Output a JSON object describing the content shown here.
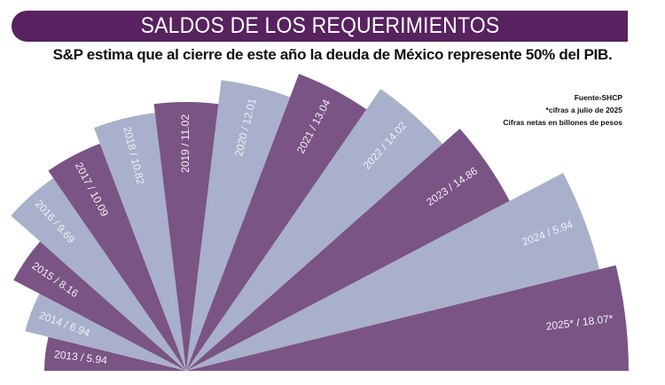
{
  "header": {
    "title": "SALDOS DE LOS REQUERIMIENTOS",
    "subtitle": "S&P estima que al cierre de este año la deuda de México represente 50% del PIB."
  },
  "notes": {
    "source": "Fuente›SHCP",
    "footnote": "*cifras a julio de 2025",
    "units": "Cifras netas en billones de pesos"
  },
  "colors": {
    "title_bg": "#58215f",
    "dark_wedge": "#7a5484",
    "light_wedge": "#a9b0cb",
    "label_text": "#f2f0f6"
  },
  "chart_data": {
    "type": "radial-bar",
    "title": "SALDOS DE LOS REQUERIMIENTOS",
    "subtitle": "S&P estima que al cierre de este año la deuda de México represente 50% del PIB.",
    "xlabel": "",
    "ylabel": "Cifras netas en billones de pesos",
    "categories": [
      "2013",
      "2014",
      "2015",
      "2016",
      "2017",
      "2018",
      "2019",
      "2020",
      "2021",
      "2022",
      "2023",
      "2024",
      "2025*"
    ],
    "values": [
      5.94,
      6.94,
      8.16,
      9.69,
      10.09,
      10.82,
      11.02,
      12.01,
      13.04,
      14.02,
      14.86,
      5.94,
      18.07
    ],
    "labels": [
      "2013 / 5.94",
      "2014 / 6.94",
      "2015 / 8.16",
      "2016 / 9.69",
      "2017 / 10.09",
      "2018 / 10.82",
      "2019 / 11.02",
      "2020 / 12.01",
      "2021 / 13.04",
      "2022 / 14.02",
      "2023 / 14.86",
      "2024 / 5.94",
      "2025* / 18.07*"
    ],
    "annotations": [
      "Fuente›SHCP",
      "*cifras a julio de 2025",
      "Cifras netas en billones de pesos"
    ],
    "legend": null
  },
  "wedges": [
    {
      "label": "2013 / 5.94",
      "r": 160,
      "a0": 180,
      "a1": 166.2,
      "color": "dark"
    },
    {
      "label": "2014 / 6.94",
      "r": 187,
      "a0": 166.2,
      "a1": 152.3,
      "color": "light"
    },
    {
      "label": "2015 / 8.16",
      "r": 220,
      "a0": 152.3,
      "a1": 138.5,
      "color": "dark"
    },
    {
      "label": "2016 / 9.69",
      "r": 264,
      "a0": 138.5,
      "a1": 124.6,
      "color": "light"
    },
    {
      "label": "2017 / 10.09",
      "r": 274,
      "a0": 124.6,
      "a1": 110.8,
      "color": "dark"
    },
    {
      "label": "2018 / 10.82",
      "r": 293,
      "a0": 110.8,
      "a1": 96.9,
      "color": "light"
    },
    {
      "label": "2019 / 11.02",
      "r": 303,
      "a0": 96.9,
      "a1": 83.1,
      "color": "dark"
    },
    {
      "label": "2020 / 12.01",
      "r": 330,
      "a0": 83.1,
      "a1": 69.2,
      "color": "light"
    },
    {
      "label": "2021 / 13.04",
      "r": 358,
      "a0": 69.2,
      "a1": 55.4,
      "color": "dark"
    },
    {
      "label": "2022 / 14.02",
      "r": 386,
      "a0": 55.4,
      "a1": 41.5,
      "color": "light"
    },
    {
      "label": "2023 / 14.86",
      "r": 412,
      "a0": 41.5,
      "a1": 27.7,
      "color": "dark"
    },
    {
      "label": "2024 / 5.94",
      "r": 480,
      "a0": 27.7,
      "a1": 13.8,
      "color": "light"
    },
    {
      "label": "2025* / 18.07*",
      "r": 499,
      "a0": 13.8,
      "a1": 0,
      "color": "dark"
    }
  ]
}
